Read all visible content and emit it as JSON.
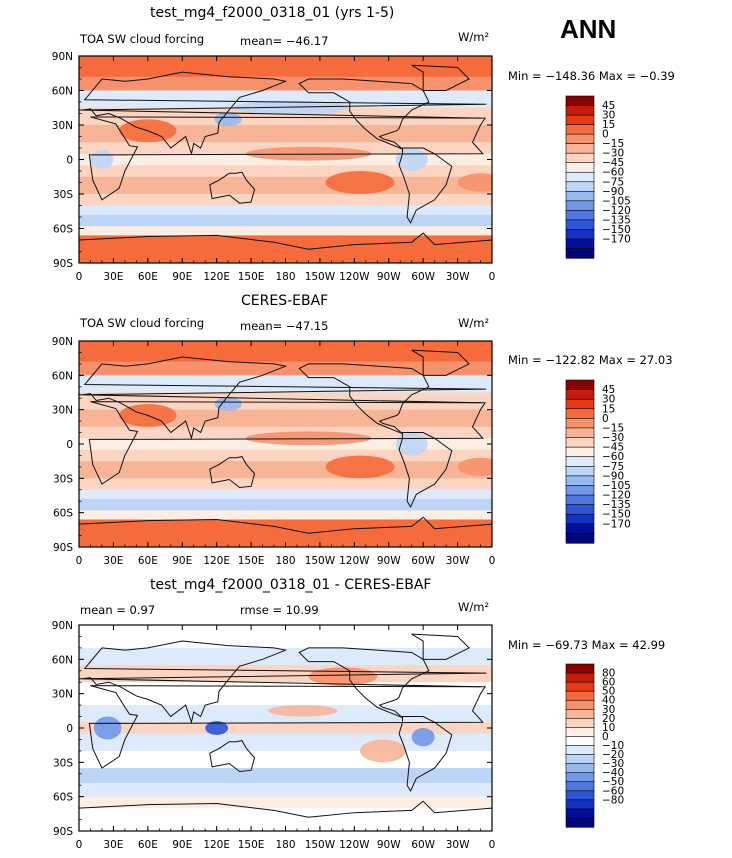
{
  "season": "ANN",
  "units": "W/m²",
  "x_ticks": [
    "0",
    "30E",
    "60E",
    "90E",
    "120E",
    "150E",
    "180",
    "150W",
    "120W",
    "90W",
    "60W",
    "30W",
    "0"
  ],
  "y_ticks": [
    "90N",
    "60N",
    "30N",
    "0",
    "30S",
    "60S",
    "90S"
  ],
  "colors": {
    "land": "#111111",
    "field_bar": [
      "#8b0000",
      "#c81c0a",
      "#e83a14",
      "#f56b3c",
      "#f6916b",
      "#f8b497",
      "#fbd5c2",
      "#fdeee4",
      "#ddeafb",
      "#bcd5f6",
      "#97b9f0",
      "#7298ea",
      "#4f78e3",
      "#2c55d8",
      "#1133c4",
      "#000f9c",
      "#00077a"
    ],
    "diff_bar": [
      "#8b0000",
      "#c81c0a",
      "#e83a14",
      "#f56b3c",
      "#f6916b",
      "#f8b497",
      "#fbd5c2",
      "#fdeee4",
      "#ffffff",
      "#ddeafb",
      "#bcd5f6",
      "#97b9f0",
      "#7298ea",
      "#4f78e3",
      "#2c55d8",
      "#1133c4",
      "#000f9c",
      "#00077a"
    ]
  },
  "chart_data": [
    {
      "type": "heatmap",
      "title": "test_mg4_f2000_0318_01 (yrs 1-5)",
      "variable_label": "TOA SW cloud forcing",
      "stat_text": "mean= −46.17",
      "min_max_text": "Min = −148.36 Max =  −0.39",
      "stats": {
        "mean": -46.17,
        "min": -148.36,
        "max": -0.39
      },
      "colorbar_levels": [
        "45",
        "30",
        "15",
        "0",
        "−15",
        "−30",
        "−45",
        "−60",
        "−75",
        "−90",
        "−105",
        "−120",
        "−135",
        "−150",
        "−170"
      ],
      "xlim": [
        0,
        360
      ],
      "ylim": [
        -90,
        90
      ]
    },
    {
      "type": "heatmap",
      "title": "CERES-EBAF",
      "variable_label": "TOA SW cloud forcing",
      "stat_text": "mean= −47.15",
      "min_max_text": "Min = −122.82 Max =  27.03",
      "stats": {
        "mean": -47.15,
        "min": -122.82,
        "max": 27.03
      },
      "colorbar_levels": [
        "45",
        "30",
        "15",
        "0",
        "−15",
        "−30",
        "−45",
        "−60",
        "−75",
        "−90",
        "−105",
        "−120",
        "−135",
        "−150",
        "−170"
      ],
      "xlim": [
        0,
        360
      ],
      "ylim": [
        -90,
        90
      ]
    },
    {
      "type": "heatmap",
      "title": "test_mg4_f2000_0318_01 - CERES-EBAF",
      "mean_text": "mean =    0.97",
      "rmse_text": "rmse =  10.99",
      "min_max_text": "Min = −69.73 Max =  42.99",
      "stats": {
        "mean": 0.97,
        "rmse": 10.99,
        "min": -69.73,
        "max": 42.99
      },
      "colorbar_levels": [
        "80",
        "60",
        "50",
        "40",
        "30",
        "20",
        "10",
        "0",
        "−10",
        "−20",
        "−30",
        "−40",
        "−50",
        "−60",
        "−80"
      ],
      "xlim": [
        0,
        360
      ],
      "ylim": [
        -90,
        90
      ]
    }
  ]
}
